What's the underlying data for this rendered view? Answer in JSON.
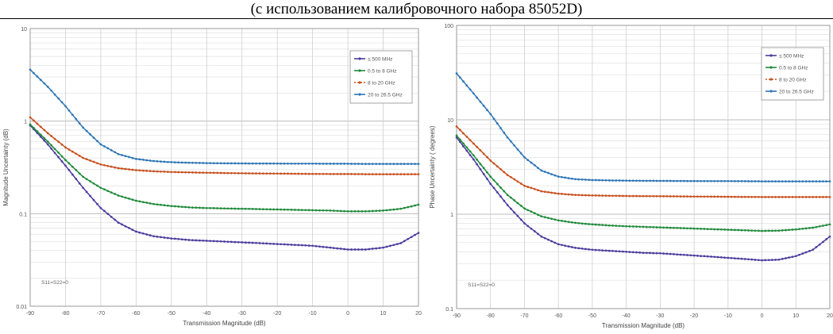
{
  "page": {
    "title": "(с использованием калибровочного набора 85052D)"
  },
  "chart_data": [
    {
      "type": "line",
      "title": "",
      "xlabel": "Transmission Magnitude (dB)",
      "ylabel": "Magnitude Uncertainty (dB)",
      "yscale": "log",
      "xlim": [
        -90,
        20
      ],
      "ylim": [
        0.01,
        10
      ],
      "xticks": [
        -90,
        -80,
        -70,
        -60,
        -50,
        -40,
        -30,
        -20,
        -10,
        0,
        10,
        20
      ],
      "xtick_labels": [
        "-90",
        "-80",
        "-70",
        "-60",
        "-50",
        "-40",
        "-30",
        "-20",
        "-10",
        "0",
        "10",
        "20"
      ],
      "yticks": [
        0.01,
        0.1,
        1,
        10
      ],
      "ytick_labels": [
        "0.01",
        "0.1",
        "1",
        "10"
      ],
      "grid": true,
      "legend_position": "top-right",
      "annotation": "S11=S22=0",
      "x": [
        -90,
        -85,
        -80,
        -75,
        -70,
        -65,
        -60,
        -55,
        -50,
        -45,
        -40,
        -35,
        -30,
        -25,
        -20,
        -15,
        -10,
        -5,
        0,
        5,
        10,
        15,
        20
      ],
      "series": [
        {
          "name": "≤ 500 MHz",
          "color": "#4b3c9e",
          "values": [
            0.9,
            0.56,
            0.33,
            0.19,
            0.115,
            0.08,
            0.064,
            0.057,
            0.054,
            0.052,
            0.051,
            0.05,
            0.049,
            0.048,
            0.047,
            0.046,
            0.045,
            0.043,
            0.041,
            0.041,
            0.043,
            0.048,
            0.062
          ]
        },
        {
          "name": "0.5 to 8 GHz",
          "color": "#1f8a3a",
          "values": [
            0.92,
            0.6,
            0.38,
            0.25,
            0.19,
            0.157,
            0.138,
            0.127,
            0.121,
            0.117,
            0.115,
            0.114,
            0.113,
            0.112,
            0.111,
            0.11,
            0.109,
            0.108,
            0.106,
            0.106,
            0.108,
            0.113,
            0.125
          ]
        },
        {
          "name": "8 to 20 GHz",
          "color": "#c8501e",
          "values": [
            1.1,
            0.74,
            0.52,
            0.4,
            0.34,
            0.31,
            0.295,
            0.287,
            0.282,
            0.279,
            0.277,
            0.275,
            0.273,
            0.272,
            0.271,
            0.27,
            0.269,
            0.268,
            0.268,
            0.267,
            0.267,
            0.267,
            0.267
          ]
        },
        {
          "name": "20 to 26.5 GHz",
          "color": "#2e75b6",
          "values": [
            3.6,
            2.35,
            1.45,
            0.85,
            0.56,
            0.44,
            0.39,
            0.37,
            0.36,
            0.355,
            0.352,
            0.35,
            0.349,
            0.348,
            0.348,
            0.347,
            0.347,
            0.346,
            0.346,
            0.345,
            0.345,
            0.345,
            0.345
          ]
        }
      ]
    },
    {
      "type": "line",
      "title": "",
      "xlabel": "Transmission Magnitude (dB)",
      "ylabel": "Phase Uncertainty ( degrees)",
      "yscale": "log",
      "xlim": [
        -90,
        20
      ],
      "ylim": [
        0.1,
        100
      ],
      "xticks": [
        -90,
        -80,
        -70,
        -60,
        -50,
        -40,
        -30,
        -20,
        -10,
        0,
        10,
        20
      ],
      "xtick_labels": [
        "-90",
        "-80",
        "-70",
        "-60",
        "-50",
        "-40",
        "-30",
        "-20",
        "-10",
        "0",
        "10",
        "20"
      ],
      "yticks": [
        0.1,
        1,
        10,
        100
      ],
      "ytick_labels": [
        "0.1",
        "1",
        "10",
        "100"
      ],
      "grid": true,
      "legend_position": "top-right",
      "annotation": "S11=S22=0",
      "x": [
        -90,
        -85,
        -80,
        -75,
        -70,
        -65,
        -60,
        -55,
        -50,
        -45,
        -40,
        -35,
        -30,
        -25,
        -20,
        -15,
        -10,
        -5,
        0,
        5,
        10,
        15,
        20
      ],
      "series": [
        {
          "name": "≤ 500 MHz",
          "color": "#4b3c9e",
          "values": [
            6.5,
            3.8,
            2.1,
            1.25,
            0.8,
            0.58,
            0.48,
            0.44,
            0.42,
            0.41,
            0.4,
            0.39,
            0.385,
            0.375,
            0.365,
            0.355,
            0.345,
            0.335,
            0.325,
            0.33,
            0.36,
            0.42,
            0.58
          ]
        },
        {
          "name": "0.5 to 8 GHz",
          "color": "#1f8a3a",
          "values": [
            6.8,
            4.2,
            2.5,
            1.6,
            1.15,
            0.95,
            0.86,
            0.81,
            0.78,
            0.76,
            0.745,
            0.735,
            0.725,
            0.715,
            0.705,
            0.695,
            0.685,
            0.675,
            0.665,
            0.67,
            0.69,
            0.72,
            0.78
          ]
        },
        {
          "name": "8 to 20 GHz",
          "color": "#c8501e",
          "values": [
            8.5,
            5.6,
            3.7,
            2.6,
            2.0,
            1.75,
            1.65,
            1.6,
            1.58,
            1.57,
            1.56,
            1.555,
            1.55,
            1.545,
            1.54,
            1.535,
            1.53,
            1.525,
            1.52,
            1.52,
            1.52,
            1.52,
            1.52
          ]
        },
        {
          "name": "20 to 26.5 GHz",
          "color": "#2e75b6",
          "values": [
            31,
            19,
            11.5,
            6.5,
            4.0,
            2.9,
            2.5,
            2.35,
            2.3,
            2.28,
            2.27,
            2.26,
            2.255,
            2.25,
            2.245,
            2.24,
            2.24,
            2.235,
            2.23,
            2.23,
            2.23,
            2.23,
            2.23
          ]
        }
      ]
    }
  ]
}
